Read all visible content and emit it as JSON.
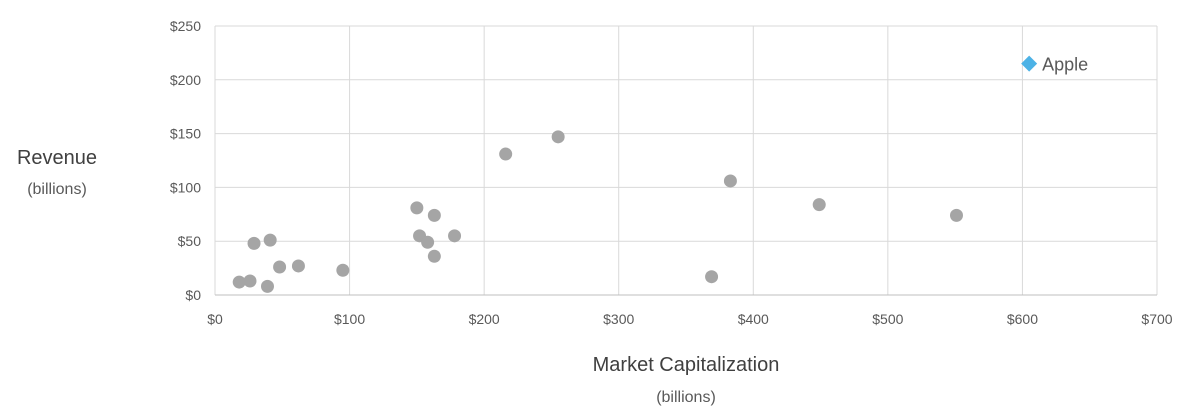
{
  "chart_data": {
    "type": "scatter",
    "xlabel": "Market Capitalization",
    "xlabel_sub": "(billions)",
    "ylabel": "Revenue",
    "ylabel_sub": "(billions)",
    "xlim": [
      0,
      700
    ],
    "ylim": [
      0,
      250
    ],
    "x_ticks": [
      0,
      100,
      200,
      300,
      400,
      500,
      600,
      700
    ],
    "y_ticks": [
      0,
      50,
      100,
      150,
      200,
      250
    ],
    "x_tick_labels": [
      "$0",
      "$100",
      "$200",
      "$300",
      "$400",
      "$500",
      "$600",
      "$700"
    ],
    "y_tick_labels": [
      "$0",
      "$50",
      "$100",
      "$150",
      "$200",
      "$250"
    ],
    "grid": true,
    "legend": "none",
    "point_color": "#a5a5a5",
    "highlight_color": "#4cb2e6",
    "points": [
      {
        "x": 18,
        "y": 12
      },
      {
        "x": 26,
        "y": 13
      },
      {
        "x": 39,
        "y": 8
      },
      {
        "x": 29,
        "y": 48
      },
      {
        "x": 41,
        "y": 51
      },
      {
        "x": 48,
        "y": 26
      },
      {
        "x": 62,
        "y": 27
      },
      {
        "x": 95,
        "y": 23
      },
      {
        "x": 150,
        "y": 81
      },
      {
        "x": 163,
        "y": 74
      },
      {
        "x": 152,
        "y": 55
      },
      {
        "x": 158,
        "y": 49
      },
      {
        "x": 178,
        "y": 55
      },
      {
        "x": 163,
        "y": 36
      },
      {
        "x": 216,
        "y": 131
      },
      {
        "x": 255,
        "y": 147
      },
      {
        "x": 369,
        "y": 17
      },
      {
        "x": 383,
        "y": 106
      },
      {
        "x": 449,
        "y": 84
      },
      {
        "x": 551,
        "y": 74
      }
    ],
    "highlight_point": {
      "x": 605,
      "y": 215,
      "label": "Apple"
    }
  }
}
